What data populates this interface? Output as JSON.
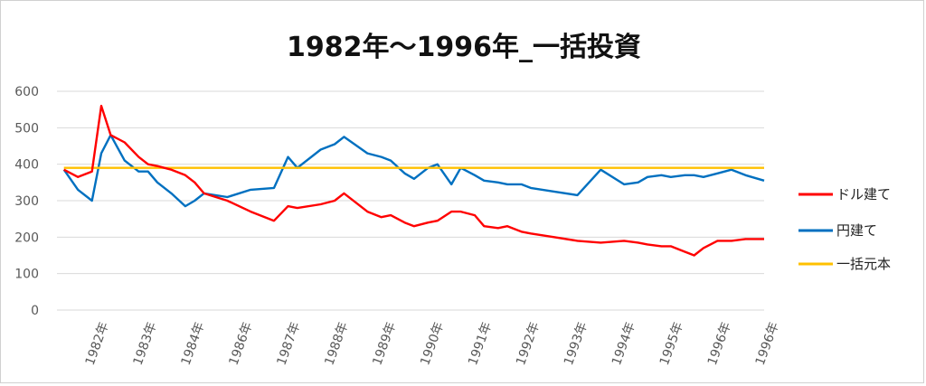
{
  "chart_data": {
    "type": "line",
    "title": "1982年～1996年_一括投資",
    "xlabel": "",
    "ylabel": "",
    "ylim": [
      0,
      600
    ],
    "yticks": [
      0,
      100,
      200,
      300,
      400,
      500,
      600
    ],
    "grid": true,
    "legend_position": "right",
    "x_tick_labels": [
      "1982年",
      "1983年",
      "1984年",
      "1986年",
      "1987年",
      "1988年",
      "1989年",
      "1990年",
      "1991年",
      "1992年",
      "1993年",
      "1994年",
      "1995年",
      "1996年",
      "1996年"
    ],
    "x": [
      1982.0,
      1982.3,
      1982.6,
      1982.8,
      1983.0,
      1983.3,
      1983.6,
      1983.8,
      1984.0,
      1984.3,
      1984.6,
      1984.8,
      1985.0,
      1985.5,
      1986.0,
      1986.5,
      1986.8,
      1987.0,
      1987.5,
      1987.8,
      1988.0,
      1988.5,
      1988.8,
      1989.0,
      1989.3,
      1989.5,
      1989.8,
      1990.0,
      1990.3,
      1990.5,
      1990.8,
      1991.0,
      1991.3,
      1991.5,
      1991.8,
      1992.0,
      1992.5,
      1993.0,
      1993.5,
      1994.0,
      1994.3,
      1994.5,
      1994.8,
      1995.0,
      1995.3,
      1995.5,
      1995.7,
      1996.0,
      1996.3,
      1996.6,
      1997.0
    ],
    "series": [
      {
        "name": "ドル建て",
        "color": "#ff0000",
        "values": [
          385,
          365,
          380,
          560,
          480,
          460,
          420,
          400,
          395,
          385,
          370,
          350,
          320,
          300,
          270,
          245,
          285,
          280,
          290,
          300,
          320,
          270,
          255,
          260,
          240,
          230,
          240,
          245,
          270,
          270,
          260,
          230,
          225,
          230,
          215,
          210,
          200,
          190,
          185,
          190,
          185,
          180,
          175,
          175,
          160,
          150,
          170,
          190,
          190,
          195,
          195
        ]
      },
      {
        "name": "円建て",
        "color": "#0070c0",
        "values": [
          385,
          330,
          300,
          430,
          480,
          410,
          380,
          380,
          350,
          320,
          285,
          300,
          320,
          310,
          330,
          335,
          420,
          390,
          440,
          455,
          475,
          430,
          420,
          410,
          375,
          360,
          390,
          400,
          345,
          390,
          370,
          355,
          350,
          345,
          345,
          335,
          325,
          315,
          385,
          345,
          350,
          365,
          370,
          365,
          370,
          370,
          365,
          375,
          385,
          370,
          355
        ]
      },
      {
        "name": "一括元本",
        "color": "#ffc000",
        "values": [
          390,
          390,
          390,
          390,
          390,
          390,
          390,
          390,
          390,
          390,
          390,
          390,
          390,
          390,
          390,
          390,
          390,
          390,
          390,
          390,
          390,
          390,
          390,
          390,
          390,
          390,
          390,
          390,
          390,
          390,
          390,
          390,
          390,
          390,
          390,
          390,
          390,
          390,
          390,
          390,
          390,
          390,
          390,
          390,
          390,
          390,
          390,
          390,
          390,
          390,
          390
        ]
      }
    ]
  }
}
